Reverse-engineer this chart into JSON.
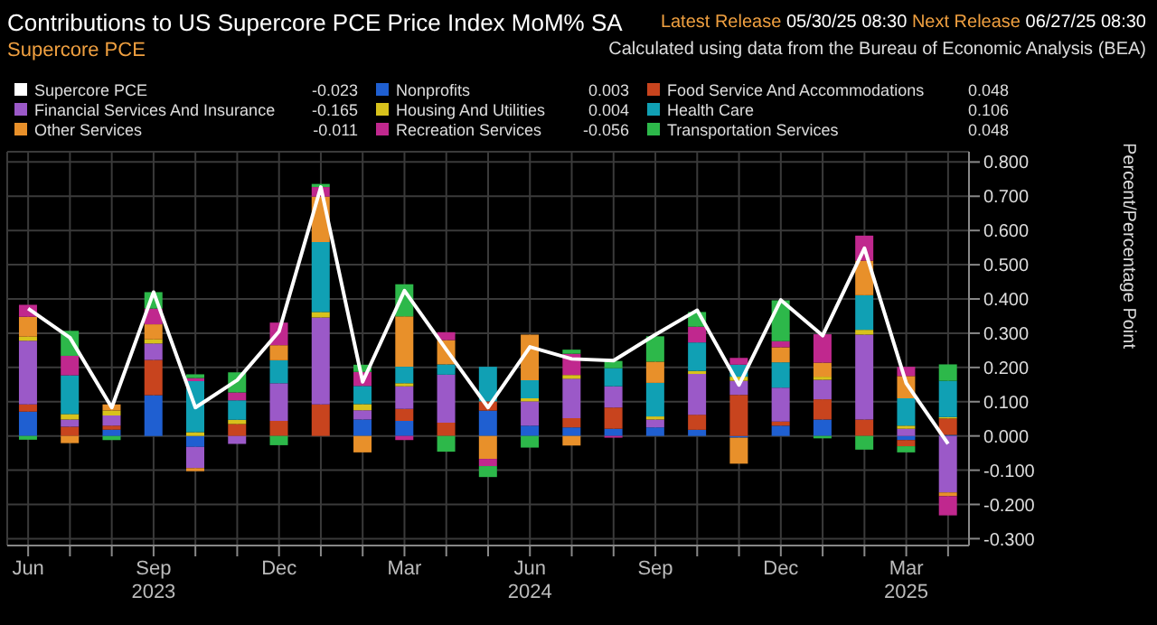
{
  "chart_data": {
    "type": "bar",
    "stacked": true,
    "title": "Contributions to US Supercore PCE Price Index MoM% SA",
    "subtitle": "Supercore PCE",
    "ylabel": "Percent/Percentage Point",
    "annotations": [
      "Latest Release",
      "05/30/25 08:30",
      "Next Release",
      "06/27/25 08:30",
      "Calculated using data from the Bureau of Economic Analysis (BEA)",
      "2023",
      "2024",
      "2025",
      "0.003",
      "0.048",
      "-0.165",
      "0.004",
      "0.106",
      "-0.011",
      "-0.056",
      "0.048",
      "-0.023"
    ],
    "categories": [
      "Jun",
      null,
      null,
      "Sep",
      null,
      null,
      "Dec",
      null,
      null,
      "Mar",
      null,
      null,
      "Jun",
      null,
      null,
      "Sep",
      null,
      null,
      "Dec",
      null,
      null,
      "Mar",
      null
    ],
    "series": [
      {
        "name": "Nonprofits",
        "color": "#1f5fd1",
        "values": [
          0.071,
          0,
          0.018,
          0.119,
          -0.032,
          0,
          0,
          0,
          0.048,
          0.044,
          0,
          0.074,
          0.03,
          0.025,
          0.021,
          0.025,
          0.018,
          -0.005,
          0.03,
          0.048,
          0,
          -0.012,
          0.003
        ]
      },
      {
        "name": "Food Service And Accommodations",
        "color": "#c8441e",
        "values": [
          0.021,
          0.027,
          0.012,
          0.103,
          0,
          0.035,
          0.044,
          0.092,
          0,
          0.035,
          0.039,
          0.027,
          0,
          0.027,
          0.062,
          0,
          0.044,
          0.12,
          0.012,
          0.059,
          0.048,
          -0.018,
          0.048
        ]
      },
      {
        "name": "Financial Services And Insurance",
        "color": "#9b59c8",
        "values": [
          0.186,
          0.021,
          0.03,
          0.048,
          -0.062,
          -0.023,
          0.11,
          0.254,
          0.027,
          0.066,
          0.14,
          0,
          0.071,
          0.115,
          0.062,
          0.023,
          0.119,
          0.041,
          0.099,
          0.057,
          0.248,
          0.021,
          -0.165
        ]
      },
      {
        "name": "Housing And Utilities",
        "color": "#d8c21c",
        "values": [
          0.012,
          0.016,
          0.014,
          0.012,
          0.011,
          0.012,
          0,
          0.016,
          0.018,
          0.009,
          0,
          0,
          0.009,
          0.011,
          0,
          0.009,
          0.009,
          0.012,
          0,
          0.009,
          0.014,
          0.009,
          0.004
        ]
      },
      {
        "name": "Health Care",
        "color": "#10a0b4",
        "values": [
          0,
          0.113,
          0,
          0,
          0.149,
          0.057,
          0.067,
          0.204,
          0.053,
          0.048,
          0.03,
          0.101,
          0.053,
          0,
          0.053,
          0.098,
          0.083,
          0.035,
          0.074,
          0,
          0.101,
          0.08,
          0.106
        ]
      },
      {
        "name": "Other Services",
        "color": "#e8902a",
        "values": [
          0.058,
          -0.021,
          0.018,
          0.044,
          -0.009,
          0,
          0.044,
          0.133,
          -0.048,
          0.147,
          0.071,
          -0.067,
          0.133,
          -0.028,
          0,
          0.062,
          0,
          -0.076,
          0.044,
          0.041,
          0.101,
          0.065,
          -0.011
        ]
      },
      {
        "name": "Recreation Services",
        "color": "#c0288e",
        "values": [
          0.035,
          0.057,
          0,
          0.046,
          0.009,
          0.023,
          0.066,
          0.028,
          0.041,
          -0.012,
          0.023,
          -0.021,
          0,
          0.062,
          -0.005,
          0,
          0.046,
          0.02,
          0.018,
          0.083,
          0.073,
          0.027,
          -0.056
        ]
      },
      {
        "name": "Transportation Services",
        "color": "#2db84a",
        "values": [
          -0.011,
          0.073,
          -0.012,
          0.048,
          0.011,
          0.059,
          -0.027,
          0.009,
          0.021,
          0.094,
          -0.046,
          -0.032,
          -0.034,
          0.012,
          0.021,
          0.074,
          0.043,
          0,
          0.119,
          -0.007,
          -0.04,
          -0.018,
          0.048
        ]
      },
      {
        "name": "Supercore PCE",
        "type": "line",
        "color": "#ffffff",
        "values": [
          0.372,
          0.287,
          0.083,
          0.42,
          0.083,
          0.163,
          0.305,
          0.727,
          0.158,
          0.424,
          0.252,
          0.083,
          0.26,
          0.225,
          0.22,
          0.296,
          0.367,
          0.149,
          0.397,
          0.293,
          0.548,
          0.154,
          -0.023
        ]
      }
    ],
    "ylim": [
      -0.32,
      0.83
    ],
    "yticks": [
      {
        "value": -0.3,
        "label": "-0.300"
      },
      {
        "value": -0.2,
        "label": "-0.200"
      },
      {
        "value": -0.1,
        "label": "-0.100"
      },
      {
        "value": 0,
        "label": "0.000"
      },
      {
        "value": 0.1,
        "label": "0.100"
      },
      {
        "value": 0.2,
        "label": "0.200"
      },
      {
        "value": 0.3,
        "label": "0.300"
      },
      {
        "value": 0.4,
        "label": "0.400"
      },
      {
        "value": 0.5,
        "label": "0.500"
      },
      {
        "value": 0.6,
        "label": "0.600"
      },
      {
        "value": 0.7,
        "label": "0.700"
      },
      {
        "value": 0.8,
        "label": "0.800"
      }
    ],
    "grid": true,
    "legend": "top",
    "marker": "none",
    "line_style": "solid"
  }
}
